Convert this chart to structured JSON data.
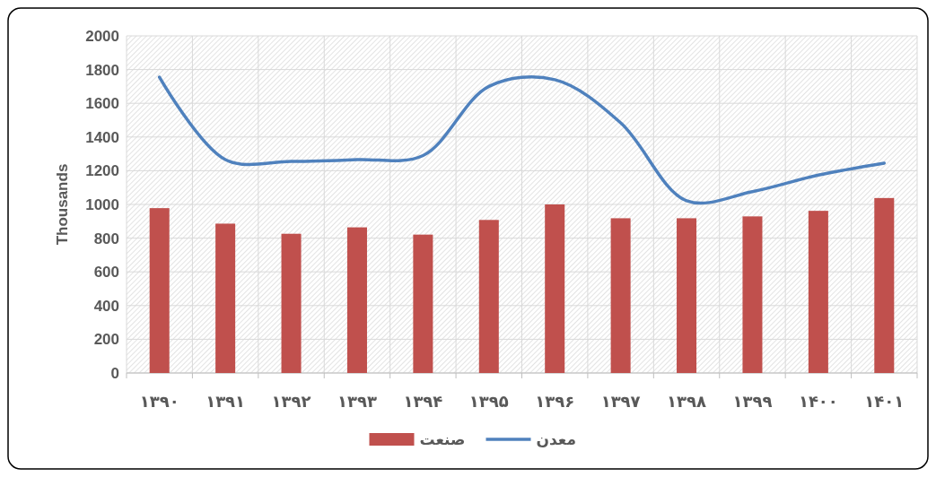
{
  "chart_data": {
    "type": "bar",
    "ylabel": "Thousands",
    "categories": [
      "۱۳۹۰",
      "۱۳۹۱",
      "۱۳۹۲",
      "۱۳۹۳",
      "۱۳۹۴",
      "۱۳۹۵",
      "۱۳۹۶",
      "۱۳۹۷",
      "۱۳۹۸",
      "۱۳۹۹",
      "۱۴۰۰",
      "۱۴۰۱"
    ],
    "series": [
      {
        "name": "صنعت",
        "color": "#c0504d",
        "values": [
          978,
          886,
          826,
          864,
          821,
          908,
          1000,
          918,
          918,
          929,
          962,
          1038
        ]
      },
      {
        "name": "معدن",
        "type": "line",
        "color": "#4f81bd",
        "values": [
          1755,
          1266,
          1255,
          1266,
          1290,
          1700,
          1740,
          1484,
          1022,
          1076,
          1174,
          1245
        ]
      }
    ],
    "ylim": [
      0,
      2000
    ],
    "yticks": [
      0,
      200,
      400,
      600,
      800,
      1000,
      1200,
      1400,
      1600,
      1800,
      2000
    ],
    "grid": true,
    "legend": "bottom",
    "marker": "none",
    "line_style": "solid"
  }
}
